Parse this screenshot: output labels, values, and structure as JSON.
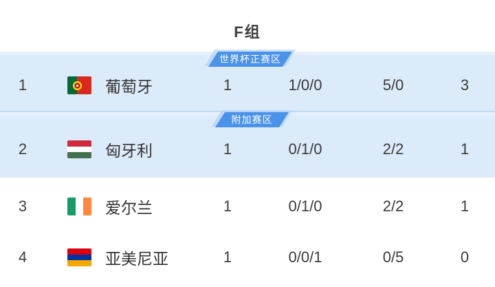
{
  "group": {
    "title": "F组"
  },
  "colors": {
    "badge_blue": "#4b92ea",
    "badge_halo_blue": "#aecff3",
    "highlight_row_bg": "#dcebfa",
    "row_divider": "#c6daef",
    "text_dark": "#3a3a3a"
  },
  "standings": {
    "rows": [
      {
        "rank": "1",
        "team": "葡萄牙",
        "flag_icon": "portugal-flag",
        "played": "1",
        "record": "1/0/0",
        "goals": "5/0",
        "points": "3",
        "zone_badge": "世界杯正赛区"
      },
      {
        "rank": "2",
        "team": "匈牙利",
        "flag_icon": "hungary-flag",
        "played": "1",
        "record": "0/1/0",
        "goals": "2/2",
        "points": "1",
        "zone_badge": "附加赛区"
      },
      {
        "rank": "3",
        "team": "爱尔兰",
        "flag_icon": "ireland-flag",
        "played": "1",
        "record": "0/1/0",
        "goals": "2/2",
        "points": "1",
        "zone_badge": ""
      },
      {
        "rank": "4",
        "team": "亚美尼亚",
        "flag_icon": "armenia-flag",
        "played": "1",
        "record": "0/0/1",
        "goals": "0/5",
        "points": "0",
        "zone_badge": ""
      }
    ]
  }
}
